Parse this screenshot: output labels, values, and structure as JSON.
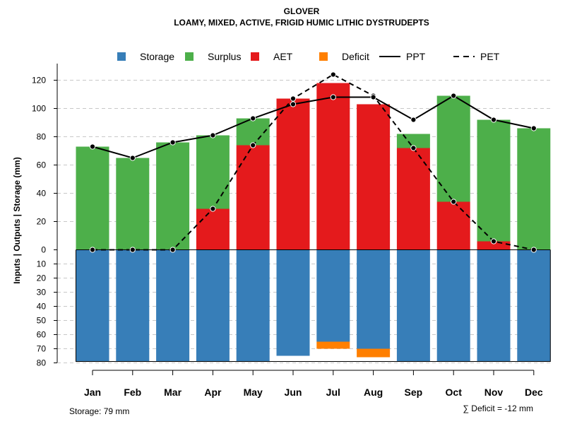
{
  "chart_data": {
    "type": "bar",
    "title": "GLOVER",
    "subtitle": "LOAMY, MIXED, ACTIVE, FRIGID HUMIC LITHIC DYSTRUDEPTS",
    "ylabel": "Inputs | Outputs | Storage    (mm)",
    "categories": [
      "Jan",
      "Feb",
      "Mar",
      "Apr",
      "May",
      "Jun",
      "Jul",
      "Aug",
      "Sep",
      "Oct",
      "Nov",
      "Dec"
    ],
    "yticks_positive": [
      "0",
      "20",
      "40",
      "60",
      "80",
      "100",
      "120"
    ],
    "yticks_negative": [
      "10",
      "20",
      "30",
      "40",
      "50",
      "60",
      "70",
      "80"
    ],
    "ylim": [
      -80,
      130
    ],
    "legend": [
      {
        "name": "Storage",
        "kind": "box",
        "color": "#377EB8"
      },
      {
        "name": "Surplus",
        "kind": "box",
        "color": "#4DAF4A"
      },
      {
        "name": "AET",
        "kind": "box",
        "color": "#E41A1C"
      },
      {
        "name": "Deficit",
        "kind": "box",
        "color": "#FF7F00"
      },
      {
        "name": "PPT",
        "kind": "solid",
        "color": "#000000"
      },
      {
        "name": "PET",
        "kind": "dashed",
        "color": "#000000"
      }
    ],
    "series": [
      {
        "name": "AET",
        "color": "#E41A1C",
        "values": [
          0,
          0,
          0,
          29,
          74,
          107,
          118,
          103,
          72,
          34,
          6,
          0
        ]
      },
      {
        "name": "Surplus",
        "color": "#4DAF4A",
        "values": [
          73,
          65,
          76,
          52,
          19,
          0,
          0,
          0,
          10,
          75,
          86,
          86
        ]
      },
      {
        "name": "Storage",
        "color": "#377EB8",
        "values": [
          79,
          79,
          79,
          79,
          79,
          75,
          65,
          70,
          79,
          79,
          79,
          79
        ]
      },
      {
        "name": "Deficit",
        "color": "#FF7F00",
        "values": [
          0,
          0,
          0,
          0,
          0,
          0,
          5,
          6,
          0,
          0,
          0,
          0
        ]
      },
      {
        "name": "PPT",
        "color": "#000000",
        "values": [
          73,
          65,
          76,
          81,
          93,
          103,
          108,
          108,
          92,
          109,
          92,
          86
        ]
      },
      {
        "name": "PET",
        "color": "#000000",
        "values": [
          0,
          0,
          0,
          29,
          74,
          107,
          124,
          109,
          72,
          34,
          6,
          0
        ]
      }
    ],
    "storage_capacity": 79,
    "footer_left": "Storage: 79 mm",
    "footer_right": "∑ Deficit = -12 mm"
  }
}
